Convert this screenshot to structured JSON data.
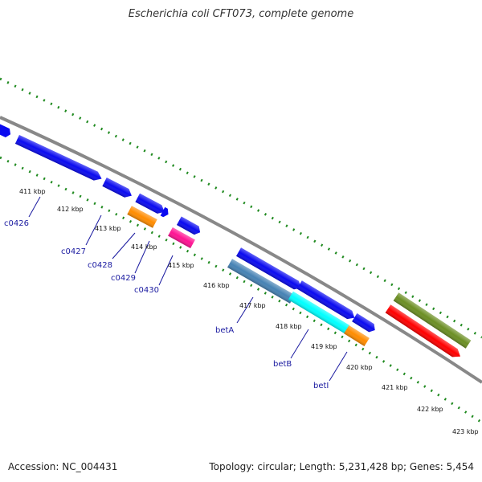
{
  "title": "Escherichia coli CFT073, complete genome",
  "footer": {
    "accession": "Accession: NC_004431",
    "topology": "Topology: circular; Length: 5,231,428 bp; Genes: 5,454"
  },
  "colors": {
    "backbone": "#888888",
    "ticks": "#1f8a1f",
    "cds": "#0a0af0",
    "gene_label": "#1a1aa0",
    "orange": "#ff8c00",
    "magenta": "#ff1493",
    "steelblue": "#4682b4",
    "cyan": "#00ffff",
    "olive": "#6b8e23",
    "red": "#ff0000"
  },
  "scale_labels": [
    "411 kbp",
    "412 kbp",
    "413 kbp",
    "414 kbp",
    "415 kbp",
    "416 kbp",
    "417 kbp",
    "418 kbp",
    "419 kbp",
    "420 kbp",
    "421 kbp",
    "422 kbp",
    "423 kbp"
  ],
  "gene_labels": [
    "c0426",
    "c0427",
    "c0428",
    "c0429",
    "c0430",
    "betA",
    "betB",
    "betI"
  ]
}
